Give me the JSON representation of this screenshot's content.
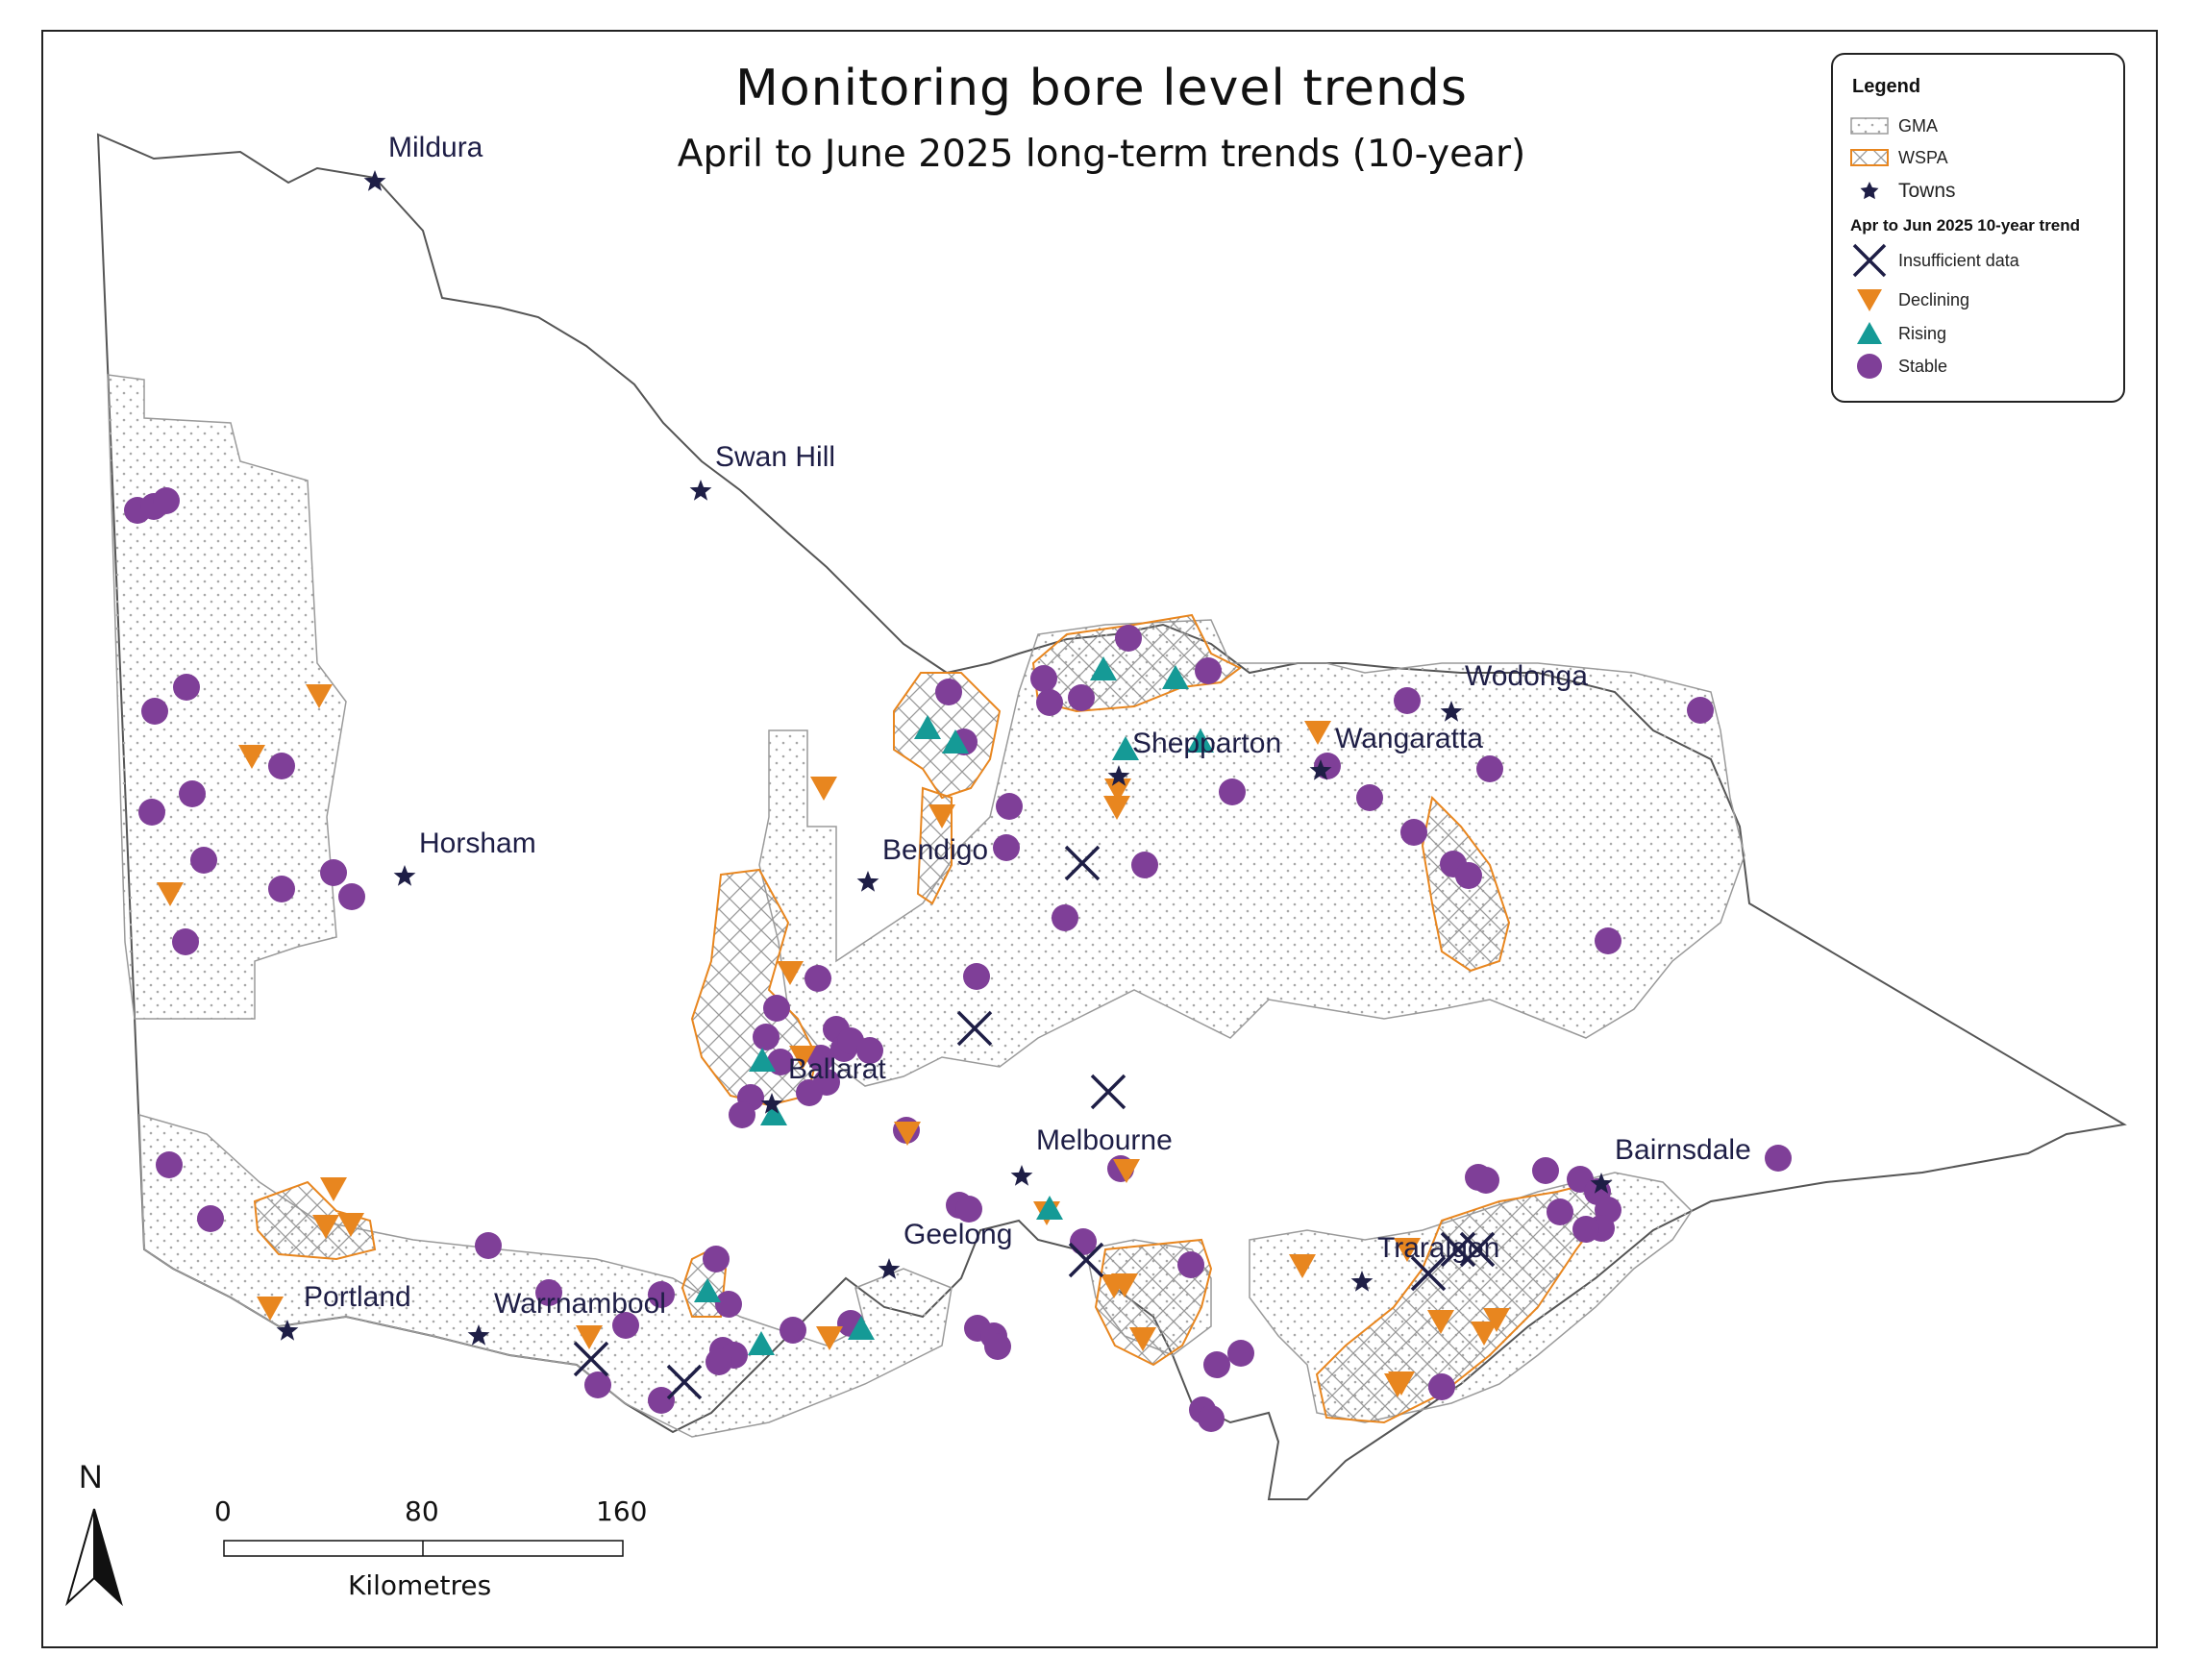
{
  "title": "Monitoring bore level trends",
  "subtitle": "April to June 2025 long-term trends (10-year)",
  "legend": {
    "heading": "Legend",
    "gma": "GMA",
    "wspa": "WSPA",
    "towns": "Towns",
    "trend_heading": "Apr to Jun 2025 10-year trend",
    "insufficient": "Insufficient data",
    "declining": "Declining",
    "rising": "Rising",
    "stable": "Stable"
  },
  "colors": {
    "stable": "#7f3f98",
    "declining": "#e8861f",
    "rising": "#159a96",
    "insufficient": "#1e1e46",
    "town": "#1e1e46",
    "wspa": "#e8861f",
    "gma": "#9a9a9a",
    "boundary": "#555555"
  },
  "towns": [
    "Mildura",
    "Swan Hill",
    "Horsham",
    "Bendigo",
    "Shepparton",
    "Wangaratta",
    "Wodonga",
    "Ballarat",
    "Melbourne",
    "Geelong",
    "Bairnsdale",
    "Traralgon",
    "Portland",
    "Warrnambool"
  ],
  "scale_bar": {
    "ticks": [
      "0",
      "80",
      "160"
    ],
    "unit": "Kilometres"
  },
  "north_label": "N"
}
